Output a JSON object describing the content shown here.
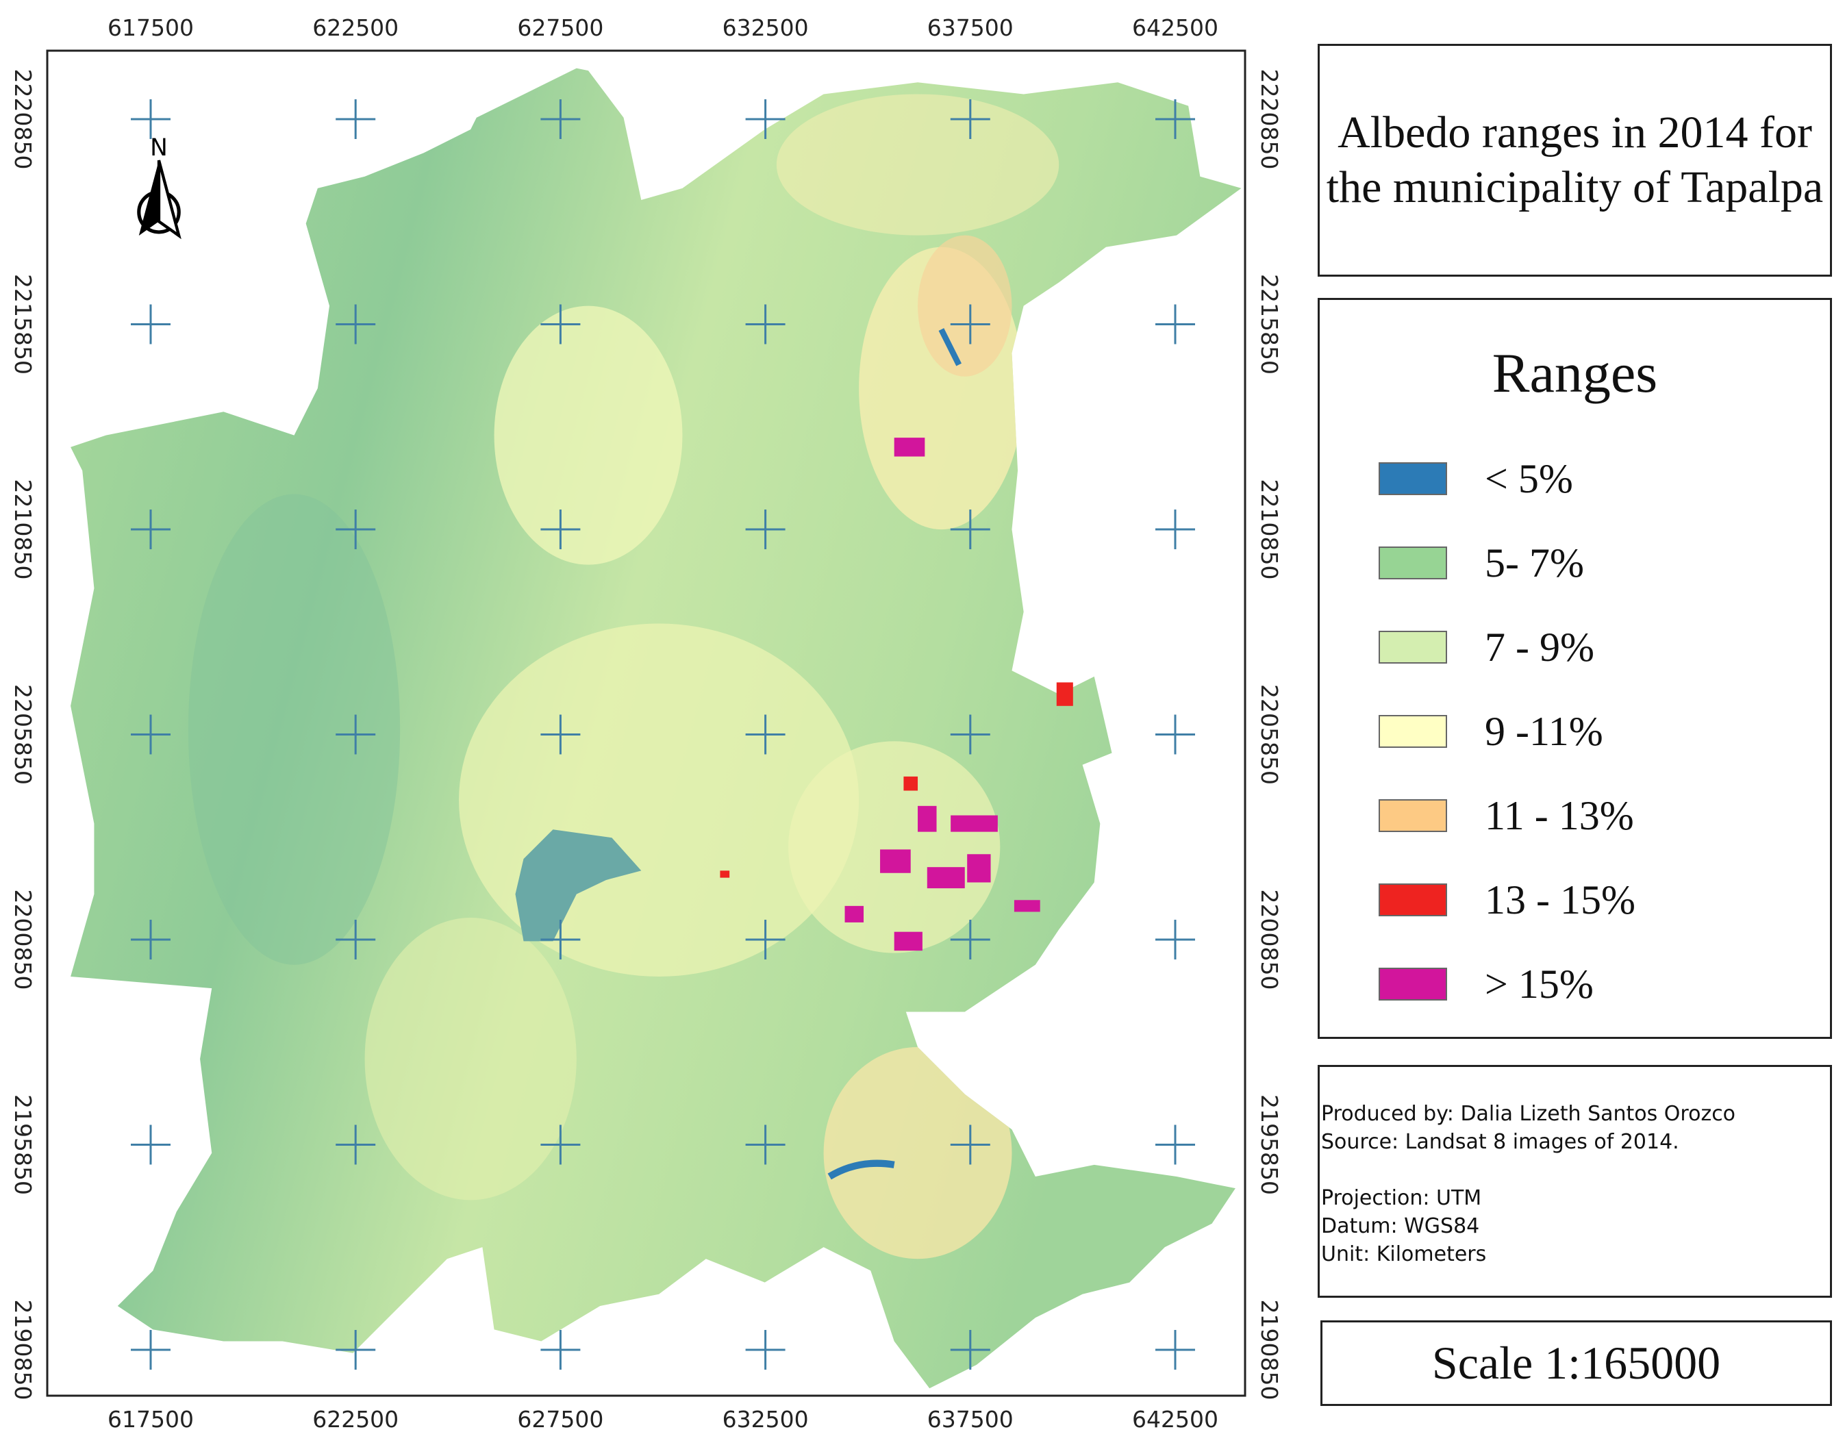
{
  "map": {
    "x_ticks": [
      617500,
      622500,
      627500,
      632500,
      637500,
      642500
    ],
    "y_ticks": [
      2220850,
      2215850,
      2210850,
      2205850,
      2200850,
      2195850,
      2190850
    ],
    "north_label": "N"
  },
  "title": "Albedo ranges in 2014 for the municipality of Tapalpa",
  "legend": {
    "title": "Ranges",
    "items": [
      {
        "label": "< 5%",
        "color": "#2c7bb6"
      },
      {
        "label": "5- 7%",
        "color": "#97d494"
      },
      {
        "label": "7 - 9%",
        "color": "#d4eeb0"
      },
      {
        "label": "9 -11%",
        "color": "#ffffc4"
      },
      {
        "label": "11 - 13%",
        "color": "#fdca84"
      },
      {
        "label": "13 - 15%",
        "color": "#ee2320"
      },
      {
        "label": "> 15%",
        "color": "#d2159c"
      }
    ]
  },
  "credits": {
    "production": [
      "Produced by: Dalia Lizeth Santos Orozco",
      "Source: Landsat 8 images of 2014."
    ],
    "projection": [
      "Projection: UTM",
      "Datum: WGS84",
      "Unit: Kilometers"
    ]
  },
  "scale": "Scale 1:165000"
}
